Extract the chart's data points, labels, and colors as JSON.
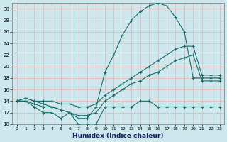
{
  "xlabel": "Humidex (Indice chaleur)",
  "background_color": "#cce8ec",
  "grid_color": "#b0d8dc",
  "line_color": "#1a6e6a",
  "xlim": [
    -0.5,
    23.5
  ],
  "ylim": [
    10,
    31
  ],
  "yticks": [
    10,
    12,
    14,
    16,
    18,
    20,
    22,
    24,
    26,
    28,
    30
  ],
  "xticks": [
    0,
    1,
    2,
    3,
    4,
    5,
    6,
    7,
    8,
    9,
    10,
    11,
    12,
    13,
    14,
    15,
    16,
    17,
    18,
    19,
    20,
    21,
    22,
    23
  ],
  "line_jagged_x": [
    0,
    1,
    2,
    3,
    4,
    5,
    6,
    7,
    8,
    9,
    10,
    11,
    12,
    13,
    14,
    15,
    16,
    17,
    18,
    19,
    20,
    21,
    22,
    23
  ],
  "line_jagged_y": [
    14,
    14,
    13,
    12,
    12,
    11,
    12,
    10,
    10,
    10,
    13,
    13,
    13,
    13,
    14,
    14,
    13,
    13,
    13,
    13,
    13,
    13,
    13,
    13
  ],
  "line_upper_x": [
    0,
    1,
    2,
    3,
    4,
    5,
    6,
    7,
    8,
    9,
    10,
    11,
    12,
    13,
    14,
    15,
    16,
    17,
    18,
    19,
    20,
    21,
    22,
    23
  ],
  "line_upper_y": [
    14,
    14.5,
    14,
    13.5,
    13,
    12.5,
    12,
    11,
    11,
    13,
    19,
    22,
    25.5,
    28,
    29.5,
    30.5,
    31,
    30.5,
    28.5,
    26,
    18,
    18,
    18,
    18
  ],
  "line_mid_x": [
    0,
    1,
    2,
    3,
    4,
    5,
    6,
    7,
    8,
    9,
    10,
    11,
    12,
    13,
    14,
    15,
    16,
    17,
    18,
    19,
    20,
    21,
    22,
    23
  ],
  "line_mid_y": [
    14,
    14.5,
    14,
    14,
    14,
    13.5,
    13.5,
    13,
    13,
    13.5,
    15,
    16,
    17,
    18,
    19,
    20,
    21,
    22,
    23,
    23.5,
    23.5,
    18.5,
    18.5,
    18.5
  ],
  "line_low_x": [
    0,
    1,
    2,
    3,
    4,
    5,
    6,
    7,
    8,
    9,
    10,
    11,
    12,
    13,
    14,
    15,
    16,
    17,
    18,
    19,
    20,
    21,
    22,
    23
  ],
  "line_low_y": [
    14,
    14,
    13.5,
    13,
    13,
    12.5,
    12,
    11.5,
    11.5,
    12,
    14,
    15,
    16,
    17,
    17.5,
    18.5,
    19,
    20,
    21,
    21.5,
    22,
    17.5,
    17.5,
    17.5
  ]
}
